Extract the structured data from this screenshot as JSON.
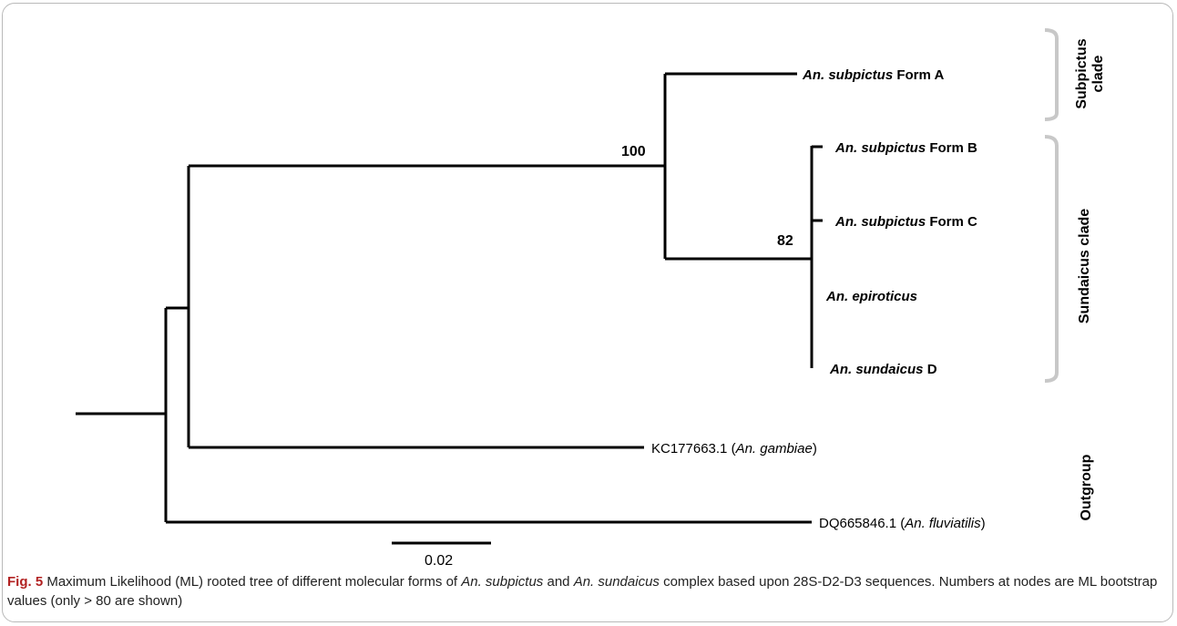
{
  "tree": {
    "taxa": {
      "formA": {
        "genus": "An. subpictus",
        "suffix": "Form A"
      },
      "formB": {
        "genus": "An. subpictus",
        "suffix": "Form B"
      },
      "formC": {
        "genus": "An. subpictus",
        "suffix": "Form C"
      },
      "epiroticus": {
        "genus": "An. epiroticus",
        "suffix": ""
      },
      "sundaicusD": {
        "genus": "An. sundaicus",
        "suffix": "D"
      },
      "gambiae": {
        "accession": "KC177663.1 (",
        "species": "An. gambiae",
        "close": ")"
      },
      "fluviatilis": {
        "accession": "DQ665846.1 (",
        "species": "An. fluviatilis",
        "close": ")"
      }
    },
    "bootstrap": {
      "node1": "100",
      "node2": "82"
    },
    "clades": {
      "subpictus_line1": "Subpictus",
      "subpictus_line2": "clade",
      "sundaicus": "Sundaicus clade",
      "outgroup": "Outgroup"
    },
    "scale_bar": {
      "label": "0.02"
    },
    "colors": {
      "branch": "#000000",
      "bracket": "#c8c8c8",
      "fig_label": "#b22222"
    }
  },
  "caption": {
    "fig_label": "Fig. 5",
    "t1": "  Maximum Likelihood (ML) rooted tree of different molecular forms of ",
    "sp1": "An. subpictus",
    "t2": " and ",
    "sp2": "An. sundaicus",
    "t3": " complex based upon 28S-D2-D3 sequences. Numbers at nodes are ML bootstrap values (only > 80 are shown)"
  }
}
